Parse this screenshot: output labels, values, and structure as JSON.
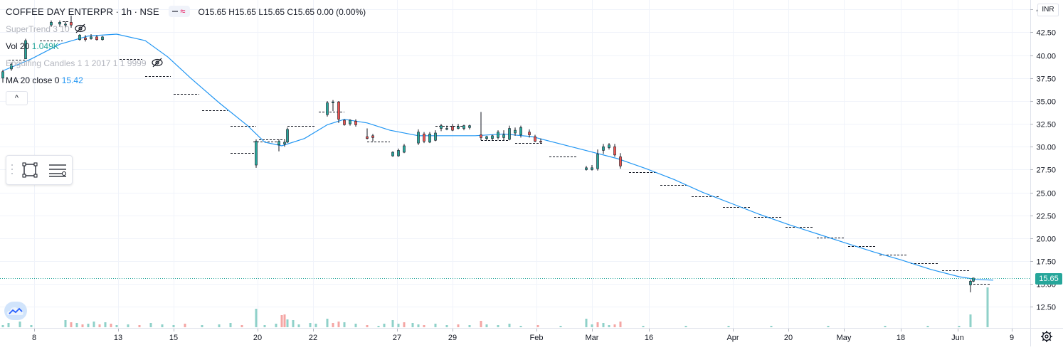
{
  "header": {
    "symbol": "COFFEE DAY ENTERPR",
    "interval": "1h",
    "exchange": "NSE",
    "separator": "·",
    "ohlc": {
      "o_label": "O",
      "o": "15.65",
      "h_label": "H",
      "h": "15.65",
      "l_label": "L",
      "l": "15.65",
      "c_label": "C",
      "c": "15.65",
      "change": "0.00 (0.00%)"
    }
  },
  "indicators": [
    {
      "name": "SuperTrend 3 10",
      "value": ""
    },
    {
      "name": "Vol 20",
      "value": "1.049K"
    },
    {
      "name": "Engulfing Candles 1 1 2017 1 1 9999",
      "value": ""
    },
    {
      "name": "MA 20 close 0",
      "value": "15.42"
    }
  ],
  "icons": {
    "hide": "eye-crossed-icon",
    "collapse": "chevron-up-icon",
    "drag": "grip-dots-icon",
    "rect": "rectangle-tool-icon",
    "lines": "lines-tool-icon",
    "logo": "tradingview-logo-icon",
    "settings": "gear-icon"
  },
  "collapse_glyph": "^",
  "currency": "INR",
  "last_price_label": "15.65",
  "colors": {
    "up": "#26a69a",
    "down": "#ef5350",
    "ma": "#2196f3",
    "supertrend": "#131722",
    "grid": "#f0f3fa",
    "axis_text": "#131722",
    "vol_up": "#8fd1c9",
    "vol_down": "#f4a6a4"
  },
  "chart_data": {
    "type": "candlestick",
    "y_axis": {
      "min": 10.2,
      "max": 45.8,
      "ticks": [
        "12.50",
        "15.00",
        "17.50",
        "20.00",
        "22.50",
        "25.00",
        "27.50",
        "30.00",
        "32.50",
        "35.00",
        "37.50",
        "40.00",
        "42.50",
        "45.00"
      ]
    },
    "x_axis": {
      "labels": [
        "8",
        "13",
        "15",
        "20",
        "22",
        "27",
        "29",
        "Feb",
        "Mar",
        "16",
        "Apr",
        "20",
        "May",
        "18",
        "Jun",
        "9"
      ]
    },
    "last_price": 15.65,
    "candles": [
      {
        "i": 0,
        "o": 37.5,
        "h": 38.4,
        "l": 37.0,
        "c": 38.2
      },
      {
        "i": 3,
        "o": 38.5,
        "h": 39.2,
        "l": 38.3,
        "c": 39.0
      },
      {
        "i": 8,
        "o": 39.6,
        "h": 41.8,
        "l": 39.6,
        "c": 41.6
      },
      {
        "i": 17,
        "o": 43.3,
        "h": 43.8,
        "l": 43.1,
        "c": 43.6
      },
      {
        "i": 20,
        "o": 43.4,
        "h": 43.8,
        "l": 43.1,
        "c": 43.6
      },
      {
        "i": 22,
        "o": 43.3,
        "h": 43.7,
        "l": 43.0,
        "c": 43.4
      },
      {
        "i": 24,
        "o": 43.6,
        "h": 44.3,
        "l": 43.0,
        "c": 43.3
      },
      {
        "i": 27,
        "o": 41.7,
        "h": 42.3,
        "l": 41.6,
        "c": 42.2
      },
      {
        "i": 29,
        "o": 41.9,
        "h": 42.2,
        "l": 41.5,
        "c": 41.7
      },
      {
        "i": 31,
        "o": 41.8,
        "h": 42.3,
        "l": 41.7,
        "c": 42.0
      },
      {
        "i": 33,
        "o": 42.0,
        "h": 42.2,
        "l": 41.6,
        "c": 41.7
      },
      {
        "i": 35,
        "o": 41.7,
        "h": 42.1,
        "l": 41.6,
        "c": 42.0
      },
      {
        "i": 89,
        "o": 28.0,
        "h": 30.8,
        "l": 27.7,
        "c": 30.6
      },
      {
        "i": 97,
        "o": 30.2,
        "h": 30.8,
        "l": 29.5,
        "c": 30.6
      },
      {
        "i": 99,
        "o": 30.3,
        "h": 30.8,
        "l": 30.0,
        "c": 30.5
      },
      {
        "i": 100,
        "o": 30.5,
        "h": 32.1,
        "l": 30.4,
        "c": 31.9
      },
      {
        "i": 114,
        "o": 33.5,
        "h": 35.0,
        "l": 33.3,
        "c": 34.8
      },
      {
        "i": 116,
        "o": 34.8,
        "h": 35.1,
        "l": 33.9,
        "c": 34.9
      },
      {
        "i": 118,
        "o": 34.9,
        "h": 35.0,
        "l": 32.6,
        "c": 33.0
      },
      {
        "i": 120,
        "o": 32.9,
        "h": 33.0,
        "l": 32.3,
        "c": 32.4
      },
      {
        "i": 122,
        "o": 32.5,
        "h": 33.0,
        "l": 32.3,
        "c": 32.9
      },
      {
        "i": 124,
        "o": 32.8,
        "h": 33.0,
        "l": 32.2,
        "c": 32.4
      },
      {
        "i": 128,
        "o": 31.1,
        "h": 32.0,
        "l": 30.8,
        "c": 30.9
      },
      {
        "i": 130,
        "o": 31.2,
        "h": 31.4,
        "l": 30.6,
        "c": 31.0
      },
      {
        "i": 137,
        "o": 29.0,
        "h": 29.5,
        "l": 28.9,
        "c": 29.4
      },
      {
        "i": 139,
        "o": 29.0,
        "h": 29.8,
        "l": 28.9,
        "c": 29.6
      },
      {
        "i": 141,
        "o": 29.4,
        "h": 30.3,
        "l": 29.3,
        "c": 30.1
      },
      {
        "i": 146,
        "o": 30.4,
        "h": 31.9,
        "l": 30.2,
        "c": 31.6
      },
      {
        "i": 148,
        "o": 31.4,
        "h": 31.6,
        "l": 30.4,
        "c": 30.6
      },
      {
        "i": 150,
        "o": 30.5,
        "h": 31.6,
        "l": 30.4,
        "c": 31.4
      },
      {
        "i": 152,
        "o": 30.7,
        "h": 31.8,
        "l": 30.6,
        "c": 31.5
      },
      {
        "i": 154,
        "o": 32.0,
        "h": 32.5,
        "l": 31.7,
        "c": 32.3
      },
      {
        "i": 156,
        "o": 31.9,
        "h": 32.3,
        "l": 31.8,
        "c": 32.0
      },
      {
        "i": 158,
        "o": 32.2,
        "h": 32.5,
        "l": 31.7,
        "c": 31.8
      },
      {
        "i": 160,
        "o": 32.0,
        "h": 32.5,
        "l": 31.9,
        "c": 32.2
      },
      {
        "i": 162,
        "o": 32.0,
        "h": 32.4,
        "l": 31.8,
        "c": 32.3
      },
      {
        "i": 164,
        "o": 32.1,
        "h": 32.4,
        "l": 31.9,
        "c": 32.3
      },
      {
        "i": 168,
        "o": 31.3,
        "h": 33.8,
        "l": 30.7,
        "c": 31.0
      },
      {
        "i": 170,
        "o": 30.9,
        "h": 31.2,
        "l": 30.7,
        "c": 31.1
      },
      {
        "i": 172,
        "o": 30.9,
        "h": 31.3,
        "l": 30.7,
        "c": 31.2
      },
      {
        "i": 174,
        "o": 31.0,
        "h": 31.8,
        "l": 30.8,
        "c": 31.6
      },
      {
        "i": 176,
        "o": 31.0,
        "h": 31.8,
        "l": 30.7,
        "c": 31.3
      },
      {
        "i": 178,
        "o": 30.8,
        "h": 32.3,
        "l": 30.7,
        "c": 32.0
      },
      {
        "i": 180,
        "o": 31.5,
        "h": 32.1,
        "l": 31.2,
        "c": 31.8
      },
      {
        "i": 182,
        "o": 31.3,
        "h": 32.3,
        "l": 31.0,
        "c": 32.1
      },
      {
        "i": 185,
        "o": 31.6,
        "h": 31.9,
        "l": 31.0,
        "c": 31.3
      },
      {
        "i": 187,
        "o": 31.1,
        "h": 31.3,
        "l": 30.5,
        "c": 30.6
      },
      {
        "i": 189,
        "o": 30.6,
        "h": 30.9,
        "l": 30.4,
        "c": 30.5
      },
      {
        "i": 205,
        "o": 27.5,
        "h": 27.9,
        "l": 27.4,
        "c": 27.7
      },
      {
        "i": 207,
        "o": 27.5,
        "h": 28.0,
        "l": 27.4,
        "c": 27.7
      },
      {
        "i": 209,
        "o": 27.6,
        "h": 29.7,
        "l": 27.4,
        "c": 29.2
      },
      {
        "i": 211,
        "o": 29.6,
        "h": 30.3,
        "l": 29.2,
        "c": 30.0
      },
      {
        "i": 213,
        "o": 29.9,
        "h": 30.4,
        "l": 29.7,
        "c": 30.2
      },
      {
        "i": 215,
        "o": 30.0,
        "h": 30.3,
        "l": 28.9,
        "c": 29.1
      },
      {
        "i": 217,
        "o": 28.9,
        "h": 29.3,
        "l": 27.6,
        "c": 27.9
      },
      {
        "i": 340,
        "o": 14.9,
        "h": 15.5,
        "l": 14.1,
        "c": 15.3
      },
      {
        "i": 341,
        "o": 15.3,
        "h": 15.7,
        "l": 15.2,
        "c": 15.65
      }
    ],
    "ma20": [
      {
        "i": 0,
        "v": 38.3
      },
      {
        "i": 10,
        "v": 39.6
      },
      {
        "i": 20,
        "v": 41.2
      },
      {
        "i": 30,
        "v": 42.1
      },
      {
        "i": 40,
        "v": 42.3
      },
      {
        "i": 50,
        "v": 41.6
      },
      {
        "i": 58,
        "v": 39.8
      },
      {
        "i": 66,
        "v": 37.5
      },
      {
        "i": 76,
        "v": 34.8
      },
      {
        "i": 86,
        "v": 32.3
      },
      {
        "i": 92,
        "v": 30.5
      },
      {
        "i": 98,
        "v": 30.1
      },
      {
        "i": 106,
        "v": 30.9
      },
      {
        "i": 114,
        "v": 32.4
      },
      {
        "i": 120,
        "v": 33.0
      },
      {
        "i": 128,
        "v": 32.6
      },
      {
        "i": 136,
        "v": 31.8
      },
      {
        "i": 146,
        "v": 31.2
      },
      {
        "i": 156,
        "v": 31.2
      },
      {
        "i": 166,
        "v": 31.2
      },
      {
        "i": 176,
        "v": 31.4
      },
      {
        "i": 186,
        "v": 31.1
      },
      {
        "i": 196,
        "v": 30.3
      },
      {
        "i": 206,
        "v": 29.5
      },
      {
        "i": 216,
        "v": 28.7
      },
      {
        "i": 226,
        "v": 27.6
      },
      {
        "i": 236,
        "v": 26.4
      },
      {
        "i": 246,
        "v": 25.0
      },
      {
        "i": 256,
        "v": 23.8
      },
      {
        "i": 266,
        "v": 22.6
      },
      {
        "i": 276,
        "v": 21.5
      },
      {
        "i": 286,
        "v": 20.5
      },
      {
        "i": 296,
        "v": 19.5
      },
      {
        "i": 306,
        "v": 18.5
      },
      {
        "i": 316,
        "v": 17.6
      },
      {
        "i": 326,
        "v": 16.6
      },
      {
        "i": 336,
        "v": 15.8
      },
      {
        "i": 342,
        "v": 15.5
      },
      {
        "i": 348,
        "v": 15.42
      }
    ],
    "supertrend": [
      {
        "i0": 2,
        "i1": 8,
        "v": 39.5
      },
      {
        "i0": 13,
        "i1": 21,
        "v": 41.6
      },
      {
        "i0": 21,
        "i1": 23,
        "v": 43.7
      },
      {
        "i0": 41,
        "i1": 49,
        "v": 39.6
      },
      {
        "i0": 50,
        "i1": 59,
        "v": 37.7
      },
      {
        "i0": 60,
        "i1": 69,
        "v": 35.8
      },
      {
        "i0": 70,
        "i1": 79,
        "v": 34.0
      },
      {
        "i0": 80,
        "i1": 89,
        "v": 32.3
      },
      {
        "i0": 90,
        "i1": 99,
        "v": 30.8
      },
      {
        "i0": 80,
        "i1": 89,
        "v": 29.3
      },
      {
        "i0": 88,
        "i1": 97,
        "v": 30.6
      },
      {
        "i0": 100,
        "i1": 110,
        "v": 32.3
      },
      {
        "i0": 111,
        "i1": 120,
        "v": 33.8
      },
      {
        "i0": 128,
        "i1": 136,
        "v": 30.6
      },
      {
        "i0": 152,
        "i1": 162,
        "v": 32.3
      },
      {
        "i0": 168,
        "i1": 178,
        "v": 30.7
      },
      {
        "i0": 180,
        "i1": 190,
        "v": 30.4
      },
      {
        "i0": 192,
        "i1": 202,
        "v": 28.9
      },
      {
        "i0": 220,
        "i1": 230,
        "v": 27.2
      },
      {
        "i0": 231,
        "i1": 241,
        "v": 25.8
      },
      {
        "i0": 242,
        "i1": 252,
        "v": 24.6
      },
      {
        "i0": 253,
        "i1": 263,
        "v": 23.4
      },
      {
        "i0": 264,
        "i1": 274,
        "v": 22.3
      },
      {
        "i0": 275,
        "i1": 285,
        "v": 21.2
      },
      {
        "i0": 286,
        "i1": 296,
        "v": 20.1
      },
      {
        "i0": 297,
        "i1": 307,
        "v": 19.1
      },
      {
        "i0": 308,
        "i1": 318,
        "v": 18.2
      },
      {
        "i0": 319,
        "i1": 329,
        "v": 17.3
      },
      {
        "i0": 330,
        "i1": 340,
        "v": 16.5
      },
      {
        "i0": 341,
        "i1": 347,
        "v": 15.0
      }
    ],
    "volume": [
      {
        "i": 0,
        "v": 3,
        "up": true
      },
      {
        "i": 2,
        "v": 6,
        "up": true
      },
      {
        "i": 6,
        "v": 8,
        "up": true
      },
      {
        "i": 10,
        "v": 3,
        "up": true
      },
      {
        "i": 22,
        "v": 10,
        "up": true
      },
      {
        "i": 24,
        "v": 7,
        "up": false
      },
      {
        "i": 26,
        "v": 6,
        "up": true
      },
      {
        "i": 28,
        "v": 4,
        "up": false
      },
      {
        "i": 30,
        "v": 5,
        "up": true
      },
      {
        "i": 32,
        "v": 8,
        "up": true
      },
      {
        "i": 34,
        "v": 4,
        "up": false
      },
      {
        "i": 36,
        "v": 7,
        "up": true
      },
      {
        "i": 38,
        "v": 5,
        "up": false
      },
      {
        "i": 40,
        "v": 3,
        "up": true
      },
      {
        "i": 44,
        "v": 4,
        "up": true
      },
      {
        "i": 48,
        "v": 3,
        "up": false
      },
      {
        "i": 52,
        "v": 6,
        "up": true
      },
      {
        "i": 56,
        "v": 4,
        "up": true
      },
      {
        "i": 60,
        "v": 3,
        "up": true
      },
      {
        "i": 64,
        "v": 5,
        "up": false
      },
      {
        "i": 70,
        "v": 3,
        "up": true
      },
      {
        "i": 76,
        "v": 4,
        "up": true
      },
      {
        "i": 80,
        "v": 6,
        "up": true
      },
      {
        "i": 84,
        "v": 3,
        "up": false
      },
      {
        "i": 89,
        "v": 26,
        "up": true
      },
      {
        "i": 92,
        "v": 3,
        "up": true
      },
      {
        "i": 96,
        "v": 5,
        "up": true
      },
      {
        "i": 98,
        "v": 17,
        "up": false
      },
      {
        "i": 99,
        "v": 18,
        "up": false
      },
      {
        "i": 100,
        "v": 11,
        "up": true
      },
      {
        "i": 102,
        "v": 10,
        "up": true
      },
      {
        "i": 104,
        "v": 4,
        "up": true
      },
      {
        "i": 108,
        "v": 6,
        "up": true
      },
      {
        "i": 110,
        "v": 5,
        "up": true
      },
      {
        "i": 114,
        "v": 12,
        "up": true
      },
      {
        "i": 116,
        "v": 6,
        "up": false
      },
      {
        "i": 118,
        "v": 8,
        "up": false
      },
      {
        "i": 120,
        "v": 7,
        "up": true
      },
      {
        "i": 124,
        "v": 5,
        "up": true
      },
      {
        "i": 128,
        "v": 3,
        "up": false
      },
      {
        "i": 132,
        "v": 2,
        "up": true
      },
      {
        "i": 134,
        "v": 5,
        "up": true
      },
      {
        "i": 137,
        "v": 10,
        "up": true
      },
      {
        "i": 139,
        "v": 5,
        "up": true
      },
      {
        "i": 141,
        "v": 7,
        "up": false
      },
      {
        "i": 144,
        "v": 6,
        "up": true
      },
      {
        "i": 146,
        "v": 4,
        "up": true
      },
      {
        "i": 148,
        "v": 3,
        "up": false
      },
      {
        "i": 152,
        "v": 5,
        "up": true
      },
      {
        "i": 156,
        "v": 3,
        "up": true
      },
      {
        "i": 160,
        "v": 4,
        "up": false
      },
      {
        "i": 164,
        "v": 3,
        "up": true
      },
      {
        "i": 168,
        "v": 9,
        "up": false
      },
      {
        "i": 170,
        "v": 4,
        "up": true
      },
      {
        "i": 174,
        "v": 3,
        "up": true
      },
      {
        "i": 178,
        "v": 5,
        "up": true
      },
      {
        "i": 182,
        "v": 2,
        "up": true
      },
      {
        "i": 188,
        "v": 3,
        "up": false
      },
      {
        "i": 196,
        "v": 2,
        "up": true
      },
      {
        "i": 205,
        "v": 12,
        "up": true
      },
      {
        "i": 207,
        "v": 4,
        "up": true
      },
      {
        "i": 209,
        "v": 7,
        "up": false
      },
      {
        "i": 211,
        "v": 6,
        "up": true
      },
      {
        "i": 213,
        "v": 3,
        "up": true
      },
      {
        "i": 215,
        "v": 4,
        "up": false
      },
      {
        "i": 217,
        "v": 8,
        "up": false
      },
      {
        "i": 225,
        "v": 2,
        "up": true
      },
      {
        "i": 240,
        "v": 2,
        "up": true
      },
      {
        "i": 255,
        "v": 2,
        "up": true
      },
      {
        "i": 270,
        "v": 2,
        "up": true
      },
      {
        "i": 290,
        "v": 2,
        "up": true
      },
      {
        "i": 310,
        "v": 2,
        "up": true
      },
      {
        "i": 325,
        "v": 2,
        "up": true
      },
      {
        "i": 336,
        "v": 2,
        "up": true
      },
      {
        "i": 340,
        "v": 18,
        "up": true
      },
      {
        "i": 346,
        "v": 56,
        "up": true
      }
    ]
  }
}
